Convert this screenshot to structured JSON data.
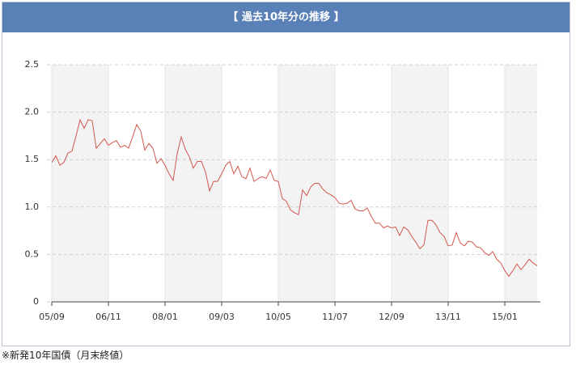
{
  "chart_data": {
    "type": "line",
    "title": "【 過去10年分の推移 】",
    "note": "※新発10年国債（月末終値）",
    "categories": [
      "05/09",
      null,
      null,
      null,
      null,
      null,
      null,
      null,
      null,
      null,
      null,
      null,
      null,
      null,
      "06/11",
      null,
      null,
      null,
      null,
      null,
      null,
      null,
      null,
      null,
      null,
      null,
      null,
      null,
      "08/01",
      null,
      null,
      null,
      null,
      null,
      null,
      null,
      null,
      null,
      null,
      null,
      null,
      null,
      "09/03",
      null,
      null,
      null,
      null,
      null,
      null,
      null,
      null,
      null,
      null,
      null,
      null,
      null,
      "10/05",
      null,
      null,
      null,
      null,
      null,
      null,
      null,
      null,
      null,
      null,
      null,
      null,
      null,
      "11/07",
      null,
      null,
      null,
      null,
      null,
      null,
      null,
      null,
      null,
      null,
      null,
      null,
      null,
      "12/09",
      null,
      null,
      null,
      null,
      null,
      null,
      null,
      null,
      null,
      null,
      null,
      null,
      null,
      "13/11",
      null,
      null,
      null,
      null,
      null,
      null,
      null,
      null,
      null,
      null,
      null,
      null,
      null,
      "15/01",
      null,
      null,
      null,
      null,
      null,
      null,
      null,
      null
    ],
    "series": [
      {
        "color": "#d2574f",
        "values": [
          1.47,
          1.54,
          1.44,
          1.47,
          1.57,
          1.59,
          1.75,
          1.92,
          1.83,
          1.92,
          1.91,
          1.62,
          1.67,
          1.72,
          1.65,
          1.68,
          1.7,
          1.63,
          1.65,
          1.62,
          1.74,
          1.87,
          1.8,
          1.6,
          1.67,
          1.62,
          1.46,
          1.51,
          1.44,
          1.35,
          1.28,
          1.56,
          1.74,
          1.61,
          1.53,
          1.41,
          1.48,
          1.48,
          1.37,
          1.17,
          1.27,
          1.27,
          1.35,
          1.44,
          1.48,
          1.35,
          1.43,
          1.32,
          1.3,
          1.41,
          1.27,
          1.3,
          1.32,
          1.3,
          1.39,
          1.28,
          1.27,
          1.09,
          1.06,
          0.97,
          0.94,
          0.92,
          1.18,
          1.12,
          1.21,
          1.25,
          1.25,
          1.19,
          1.15,
          1.13,
          1.1,
          1.04,
          1.03,
          1.04,
          1.07,
          0.98,
          0.96,
          0.96,
          0.99,
          0.9,
          0.83,
          0.83,
          0.78,
          0.8,
          0.78,
          0.79,
          0.7,
          0.79,
          0.76,
          0.69,
          0.63,
          0.56,
          0.6,
          0.86,
          0.86,
          0.81,
          0.73,
          0.69,
          0.59,
          0.6,
          0.73,
          0.62,
          0.59,
          0.64,
          0.63,
          0.58,
          0.57,
          0.52,
          0.49,
          0.53,
          0.45,
          0.41,
          0.33,
          0.27,
          0.33,
          0.4,
          0.34,
          0.39,
          0.45,
          0.41,
          0.38
        ]
      }
    ],
    "ylim": [
      0,
      2.5
    ],
    "yticks": [
      0,
      0.5,
      {
        "value": 1,
        "label": "1.0"
      },
      1.5,
      {
        "value": 2,
        "label": "2.0"
      },
      2.5
    ],
    "grid": true,
    "shade_alternate": true
  }
}
